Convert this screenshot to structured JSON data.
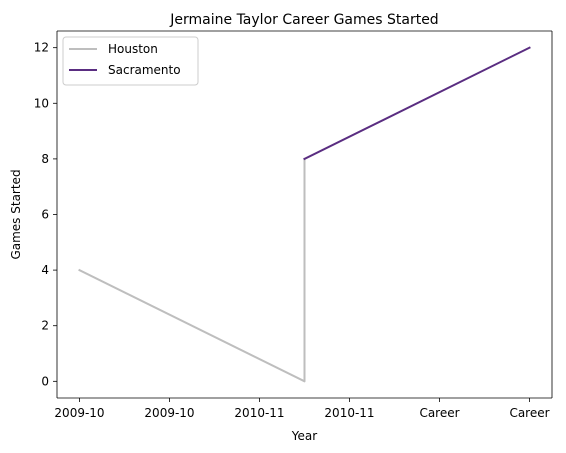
{
  "chart_data": {
    "type": "line",
    "title": "Jermaine Taylor  Career Games Started",
    "xlabel": "Year",
    "ylabel": "Games Started",
    "x_tick_labels": [
      "2009-10",
      "2009-10",
      "2010-11",
      "2010-11",
      "Career",
      "Career"
    ],
    "y_ticks": [
      0,
      2,
      4,
      6,
      8,
      10,
      12
    ],
    "ylim": [
      -0.6,
      12.6
    ],
    "grid": false,
    "legend_position": "top-left",
    "series": [
      {
        "name": "Houston",
        "color": "#bebebe",
        "points": [
          [
            0,
            4
          ],
          [
            2.5,
            0
          ],
          [
            2.5,
            8
          ]
        ]
      },
      {
        "name": "Sacramento",
        "color": "#5a2d81",
        "points": [
          [
            2.5,
            8
          ],
          [
            5,
            12
          ]
        ]
      }
    ]
  }
}
